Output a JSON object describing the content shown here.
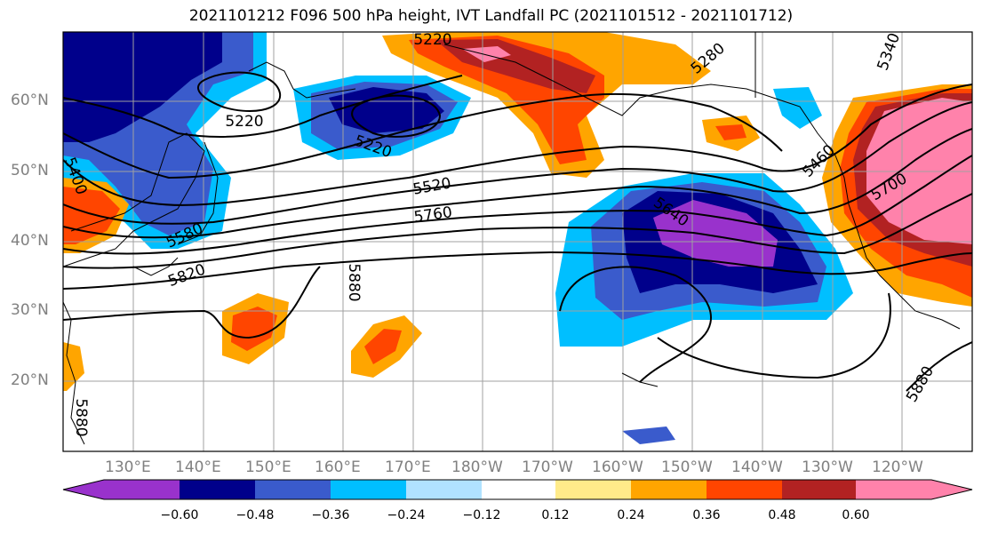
{
  "figure": {
    "title": "2021101212 F096 500 hPa height, IVT Landfall PC (2021101512 - 2021101712)"
  },
  "map": {
    "projection": "lat-lon",
    "lon_range_east": [
      120,
      249
    ],
    "lat_range": [
      10,
      70
    ],
    "gridlines": true,
    "lat_ticks": [
      "20°N",
      "30°N",
      "40°N",
      "50°N",
      "60°N"
    ],
    "lon_ticks": [
      "130°E",
      "140°E",
      "150°E",
      "160°E",
      "170°E",
      "180°W",
      "170°W",
      "160°W",
      "150°W",
      "140°W",
      "130°W",
      "120°W"
    ],
    "height_contour_labels": [
      "5220",
      "5220",
      "5220",
      "5280",
      "5400",
      "5460",
      "5520",
      "5580",
      "5640",
      "5700",
      "5760",
      "5820",
      "5880",
      "5880",
      "5340",
      "5880"
    ],
    "colors": {
      "land_coast": "#000000",
      "grid": "#a0a0a0"
    }
  },
  "colorbar": {
    "labels": [
      "−0.60",
      "−0.48",
      "−0.36",
      "−0.24",
      "−0.12",
      "0.12",
      "0.24",
      "0.36",
      "0.48",
      "0.60"
    ],
    "colors": [
      "#9932cc",
      "#00008b",
      "#3a5bcc",
      "#00bfff",
      "#b0e2ff",
      "#ffffff",
      "#ffeb8a",
      "#ffa500",
      "#ff4500",
      "#b22222",
      "#ff82ab"
    ]
  }
}
